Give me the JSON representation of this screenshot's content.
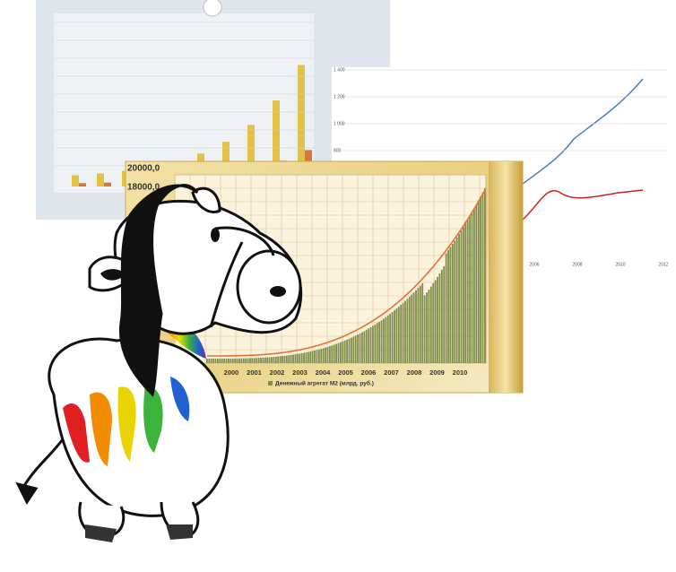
{
  "right_chart": {
    "yticks": [
      "1 400",
      "1 200",
      "1 000",
      "800"
    ],
    "xticks": [
      "2006",
      "2008",
      "2010",
      "2012"
    ]
  },
  "front_chart": {
    "yticks": [
      "20000,0",
      "18000,0"
    ],
    "xticks": [
      "2000",
      "2001",
      "2002",
      "2003",
      "2004",
      "2005",
      "2006",
      "2007",
      "2008",
      "2009",
      "2010"
    ],
    "legend": "Денежный агрегат М2 (млрд. руб.)"
  }
}
